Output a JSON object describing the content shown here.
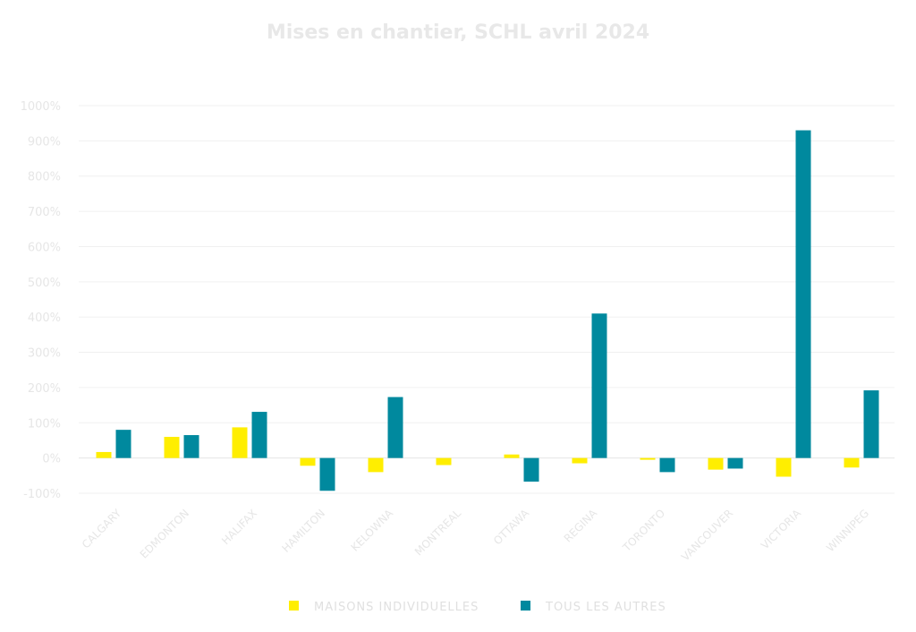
{
  "chart_data": {
    "type": "bar",
    "title": "Mises en chantier, SCHL avril 2024",
    "categories": [
      "CALGARY",
      "EDMONTON",
      "HALIFAX",
      "HAMILTON",
      "KELOWNA",
      "MONTREAL",
      "OTTAWA",
      "REGINA",
      "TORONTO",
      "VANCOUVER",
      "VICTORIA",
      "WINNIPEG"
    ],
    "series": [
      {
        "name": "MAISONS INDIVIDUELLES",
        "color": "#ffee00",
        "values": [
          17,
          60,
          87,
          -22,
          -40,
          -20,
          10,
          -15,
          -5,
          -33,
          -53,
          -27
        ]
      },
      {
        "name": "TOUS LES AUTRES",
        "color": "#00899e",
        "values": [
          80,
          65,
          131,
          -93,
          173,
          0,
          -67,
          410,
          -40,
          -30,
          930,
          192
        ]
      }
    ],
    "ylim": [
      -100,
      1000
    ],
    "yticks": [
      "1000%",
      "900%",
      "800%",
      "700%",
      "600%",
      "500%",
      "400%",
      "300%",
      "200%",
      "100%",
      "0%",
      "-100%"
    ],
    "ytick_values": [
      1000,
      900,
      800,
      700,
      600,
      500,
      400,
      300,
      200,
      100,
      0,
      -100
    ],
    "grid": true,
    "legend_position": "bottom-center"
  }
}
